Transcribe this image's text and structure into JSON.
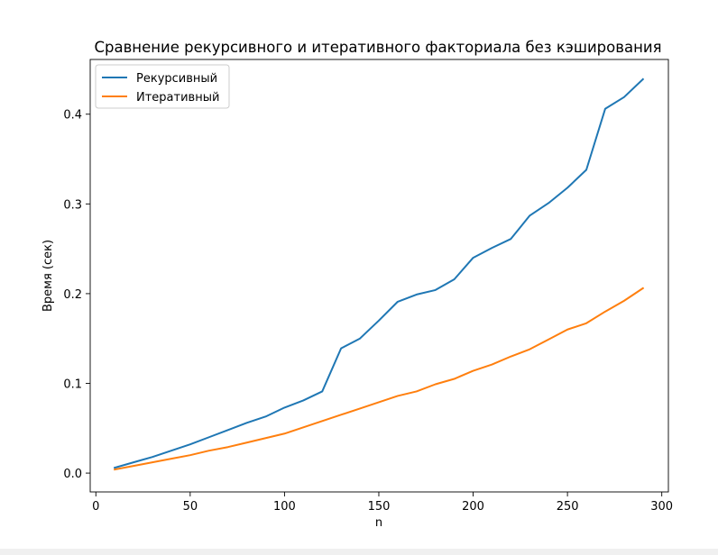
{
  "chart_data": {
    "type": "line",
    "title": "Сравнение рекурсивного и итеративного факториала без кэширования",
    "xlabel": "n",
    "ylabel": "Время (сек)",
    "xlim": [
      -3,
      303.5
    ],
    "ylim": [
      -0.021,
      0.461
    ],
    "xticks": [
      0,
      50,
      100,
      150,
      200,
      250,
      300
    ],
    "yticks": [
      0.0,
      0.1,
      0.2,
      0.3,
      0.4
    ],
    "ytick_labels": [
      "0.0",
      "0.1",
      "0.2",
      "0.3",
      "0.4"
    ],
    "grid": false,
    "legend_position": "top-left",
    "x": [
      10,
      20,
      30,
      40,
      50,
      60,
      70,
      80,
      90,
      100,
      110,
      120,
      130,
      140,
      150,
      160,
      170,
      180,
      190,
      200,
      210,
      220,
      230,
      240,
      250,
      260,
      270,
      280,
      290
    ],
    "series": [
      {
        "name": "Рекурсивный",
        "color": "#1f77b4",
        "values": [
          0.006,
          0.012,
          0.018,
          0.025,
          0.032,
          0.04,
          0.048,
          0.056,
          0.063,
          0.073,
          0.081,
          0.091,
          0.139,
          0.15,
          0.17,
          0.191,
          0.199,
          0.204,
          0.216,
          0.24,
          0.251,
          0.261,
          0.287,
          0.301,
          0.318,
          0.338,
          0.406,
          0.419,
          0.439
        ]
      },
      {
        "name": "Итеративный",
        "color": "#ff7f0e",
        "values": [
          0.004,
          0.008,
          0.012,
          0.016,
          0.02,
          0.025,
          0.029,
          0.034,
          0.039,
          0.044,
          0.051,
          0.058,
          0.065,
          0.072,
          0.079,
          0.086,
          0.091,
          0.099,
          0.105,
          0.114,
          0.121,
          0.13,
          0.138,
          0.149,
          0.16,
          0.167,
          0.18,
          0.192,
          0.206
        ]
      }
    ]
  }
}
